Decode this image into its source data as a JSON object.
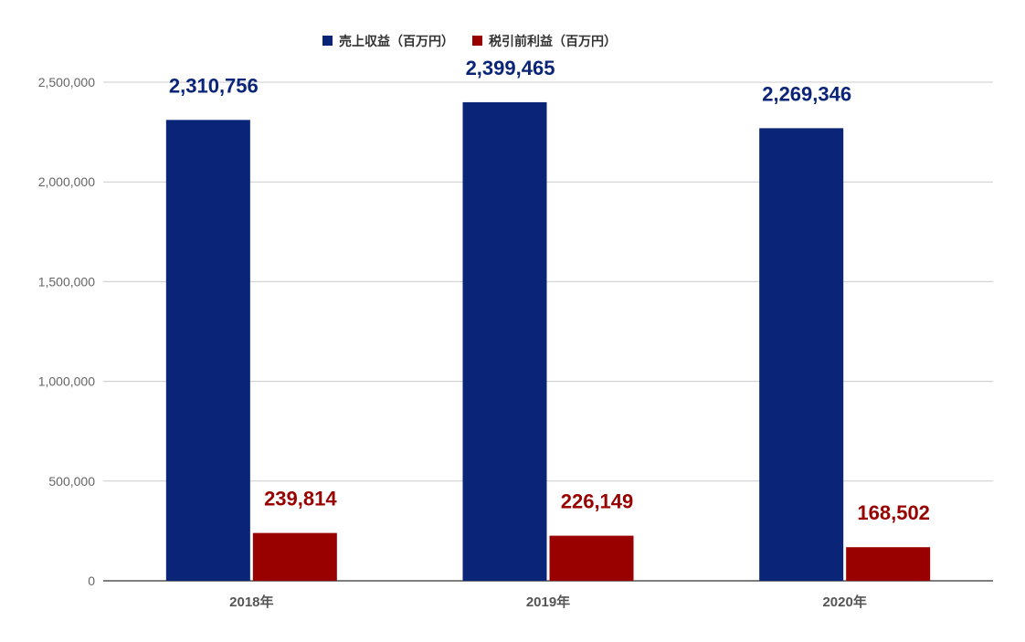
{
  "chart_data": {
    "type": "bar",
    "categories": [
      "2018年",
      "2019年",
      "2020年"
    ],
    "series": [
      {
        "name": "売上収益（百万円）",
        "color": "#0a2478",
        "values": [
          2310756,
          2399465,
          2269346
        ],
        "labels": [
          "2,310,756",
          "2,399,465",
          "2,269,346"
        ]
      },
      {
        "name": "税引前利益（百万円）",
        "color": "#990000",
        "values": [
          239814,
          226149,
          168502
        ],
        "labels": [
          "239,814",
          "226,149",
          "168,502"
        ]
      }
    ],
    "y_ticks": [
      0,
      500000,
      1000000,
      1500000,
      2000000,
      2500000
    ],
    "y_tick_labels": [
      "0",
      "500,000",
      "1,000,000",
      "1,500,000",
      "2,000,000",
      "2,500,000"
    ],
    "ylim": [
      0,
      2500000
    ],
    "grid": true,
    "legend_position": "top"
  }
}
